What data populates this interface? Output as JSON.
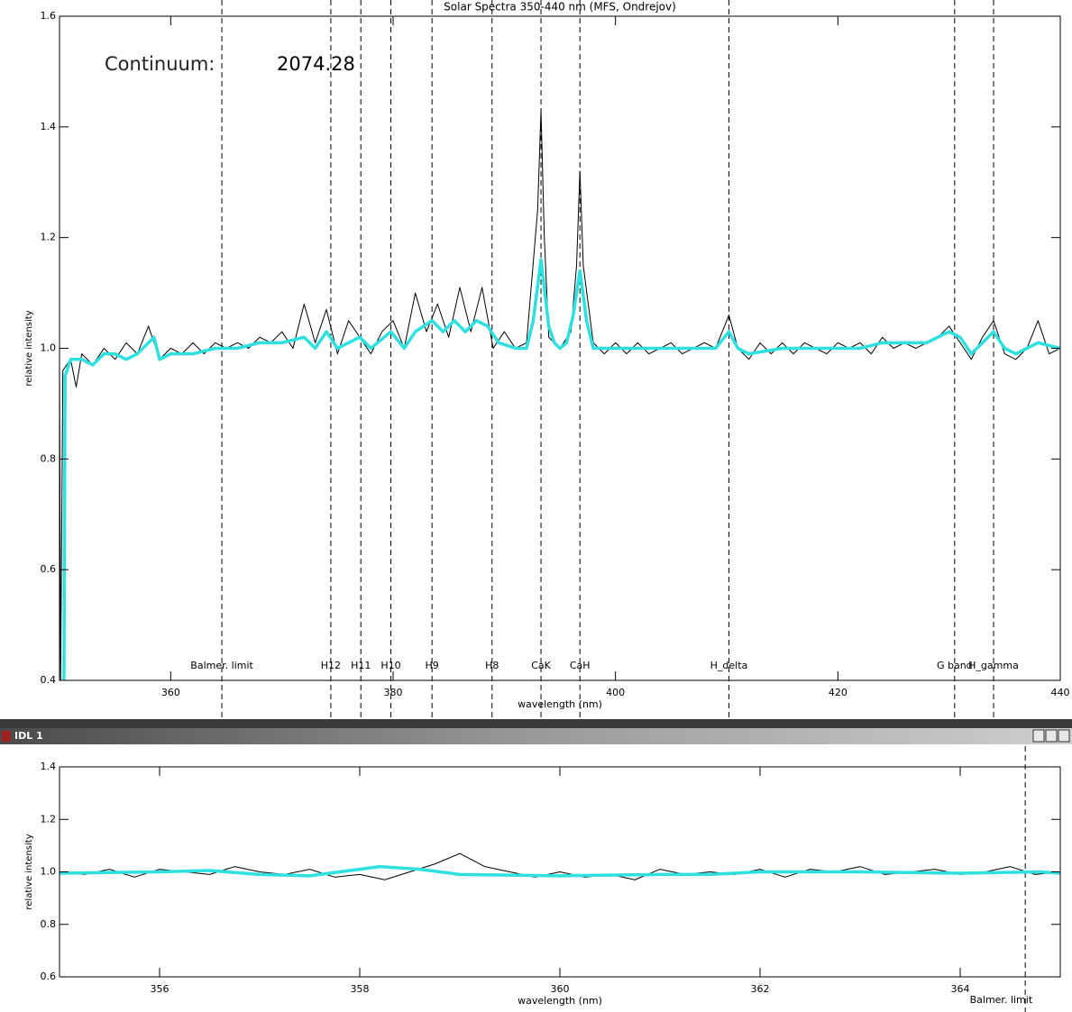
{
  "window": {
    "title": "IDL 1"
  },
  "chart_data": [
    {
      "type": "line",
      "title": "Solar Spectra 350-440 nm (MFS, Ondrejov)",
      "x_label": "wavelength (nm)",
      "y_label": "relative intensity",
      "annotation": {
        "label": "Continuum:",
        "value": 2074.28
      },
      "xlim": [
        350,
        440
      ],
      "xticks": [
        360,
        380,
        400,
        420,
        440
      ],
      "ylim": [
        0.4,
        1.6
      ],
      "yticks": [
        0.4,
        0.6,
        0.8,
        {
          "value": 1,
          "label": "1.0"
        },
        1.2,
        1.4,
        1.6
      ],
      "markers": [
        {
          "label": "Balmer. limit",
          "x": 364.6
        },
        {
          "label": "H12",
          "x": 374.4
        },
        {
          "label": "H11",
          "x": 377.1
        },
        {
          "label": "H10",
          "x": 379.8
        },
        {
          "label": "H9",
          "x": 383.5
        },
        {
          "label": "H8",
          "x": 388.9
        },
        {
          "label": "CaK",
          "x": 393.3
        },
        {
          "label": "CaH",
          "x": 396.8
        },
        {
          "label": "H_delta",
          "x": 410.2
        },
        {
          "label": "G band",
          "x": 430.5
        },
        {
          "label": "H_gamma",
          "x": 434.0
        }
      ],
      "series": [
        {
          "color": "#000000",
          "width": 1,
          "x": [
            350.0,
            350.1,
            350.3,
            351,
            351.5,
            352,
            353,
            354,
            355,
            356,
            357,
            358,
            359,
            360,
            361,
            362,
            363,
            364,
            365,
            366,
            367,
            368,
            369,
            370,
            371,
            372,
            373,
            374,
            375,
            376,
            377,
            378,
            379,
            380,
            381,
            382,
            383,
            384,
            385,
            386,
            387,
            388,
            389,
            390,
            391,
            392,
            393,
            393.3,
            393.6,
            394,
            395,
            396,
            396.5,
            396.8,
            397.1,
            398,
            399,
            400,
            401,
            402,
            403,
            404,
            405,
            406,
            407,
            408,
            409,
            410.2,
            411,
            412,
            413,
            414,
            415,
            416,
            417,
            418,
            419,
            420,
            421,
            422,
            423,
            424,
            425,
            426,
            427,
            428,
            429,
            430,
            431,
            432,
            433,
            434,
            435,
            436,
            437,
            438,
            439,
            440
          ],
          "values": [
            0.97,
            0.4,
            0.96,
            0.98,
            0.93,
            0.99,
            0.97,
            1.0,
            0.98,
            1.01,
            0.99,
            1.04,
            0.98,
            1.0,
            0.99,
            1.01,
            0.99,
            1.01,
            1.0,
            1.01,
            1.0,
            1.02,
            1.01,
            1.03,
            1.0,
            1.08,
            1.01,
            1.07,
            0.99,
            1.05,
            1.02,
            0.99,
            1.03,
            1.05,
            1.0,
            1.1,
            1.03,
            1.08,
            1.02,
            1.11,
            1.03,
            1.11,
            1.0,
            1.03,
            1.0,
            1.01,
            1.25,
            1.43,
            1.2,
            1.02,
            1.0,
            1.03,
            1.15,
            1.32,
            1.15,
            1.01,
            0.99,
            1.01,
            0.99,
            1.01,
            0.99,
            1.0,
            1.01,
            0.99,
            1.0,
            1.01,
            1.0,
            1.06,
            1.0,
            0.98,
            1.01,
            0.99,
            1.01,
            0.99,
            1.01,
            1.0,
            0.99,
            1.01,
            1.0,
            1.01,
            0.99,
            1.02,
            1.0,
            1.01,
            1.0,
            1.01,
            1.02,
            1.04,
            1.01,
            0.98,
            1.02,
            1.05,
            0.99,
            0.98,
            1.0,
            1.05,
            0.99,
            1.0
          ]
        },
        {
          "color": "#2ee0e0",
          "width": 3.5,
          "x": [
            350.4,
            350.5,
            351,
            352,
            353,
            354,
            355,
            356,
            357,
            358,
            358.5,
            359,
            360,
            362,
            364,
            366,
            368,
            370,
            372,
            373,
            374,
            375,
            376,
            377,
            378,
            379.8,
            381,
            382,
            383.5,
            384.5,
            385.5,
            386.5,
            387.5,
            388.5,
            389.5,
            391,
            392,
            392.6,
            393.3,
            394,
            394.5,
            395,
            395.6,
            396.2,
            396.8,
            397.4,
            398,
            400,
            402,
            404,
            406,
            409,
            410.2,
            411,
            412,
            415,
            420,
            422,
            424,
            426,
            428,
            430,
            431,
            432,
            433,
            434,
            435,
            436,
            437,
            438,
            440
          ],
          "values": [
            0.4,
            0.95,
            0.98,
            0.98,
            0.97,
            0.99,
            0.99,
            0.98,
            0.99,
            1.01,
            1.02,
            0.98,
            0.99,
            0.99,
            1.0,
            1.0,
            1.01,
            1.01,
            1.02,
            1.0,
            1.03,
            1.0,
            1.01,
            1.02,
            1.0,
            1.03,
            1.0,
            1.03,
            1.05,
            1.03,
            1.05,
            1.03,
            1.05,
            1.04,
            1.01,
            1.0,
            1.0,
            1.05,
            1.16,
            1.04,
            1.01,
            1.0,
            1.01,
            1.06,
            1.14,
            1.05,
            1.0,
            1.0,
            1.0,
            1.0,
            1.0,
            1.0,
            1.03,
            1.0,
            0.99,
            1.0,
            1.0,
            1.0,
            1.01,
            1.01,
            1.01,
            1.03,
            1.02,
            0.99,
            1.01,
            1.03,
            1.0,
            0.99,
            1.0,
            1.01,
            1.0
          ]
        }
      ]
    },
    {
      "type": "line",
      "x_label": "wavelength (nm)",
      "y_label": "relative intensity",
      "xlim": [
        355,
        365
      ],
      "xticks": [
        356,
        358,
        360,
        362,
        364
      ],
      "ylim": [
        0.6,
        1.4
      ],
      "yticks": [
        0.6,
        0.8,
        {
          "value": 1,
          "label": "1.0"
        },
        1.2,
        1.4
      ],
      "markers": [
        {
          "label": "Balmer. limit",
          "x": 364.65
        }
      ],
      "series": [
        {
          "color": "#000000",
          "width": 1,
          "x": [
            355,
            355.25,
            355.5,
            355.75,
            356,
            356.25,
            356.5,
            356.75,
            357,
            357.25,
            357.5,
            357.75,
            358,
            358.25,
            358.5,
            358.75,
            359,
            359.25,
            359.5,
            359.75,
            360,
            360.25,
            360.5,
            360.75,
            361,
            361.25,
            361.5,
            361.75,
            362,
            362.25,
            362.5,
            362.75,
            363,
            363.25,
            363.5,
            363.75,
            364,
            364.25,
            364.5,
            364.75,
            365
          ],
          "values": [
            1.0,
            0.99,
            1.01,
            0.98,
            1.01,
            1.0,
            0.99,
            1.02,
            1.0,
            0.99,
            1.01,
            0.98,
            0.99,
            0.97,
            1.0,
            1.03,
            1.07,
            1.02,
            1.0,
            0.98,
            1.0,
            0.98,
            0.99,
            0.97,
            1.01,
            0.99,
            1.0,
            0.99,
            1.01,
            0.98,
            1.01,
            1.0,
            1.02,
            0.99,
            1.0,
            1.01,
            0.99,
            1.0,
            1.02,
            0.99,
            1.0
          ]
        },
        {
          "color": "#2ee0e0",
          "width": 3.5,
          "x": [
            355,
            356,
            356.5,
            357,
            357.5,
            358,
            358.2,
            358.6,
            359,
            360,
            361,
            361.5,
            362,
            363,
            364,
            364.8,
            365
          ],
          "values": [
            0.995,
            1.0,
            1.005,
            0.99,
            0.985,
            1.01,
            1.02,
            1.01,
            0.99,
            0.985,
            0.99,
            0.99,
            1.0,
            1.0,
            0.995,
            1.0,
            0.995
          ]
        }
      ]
    }
  ]
}
